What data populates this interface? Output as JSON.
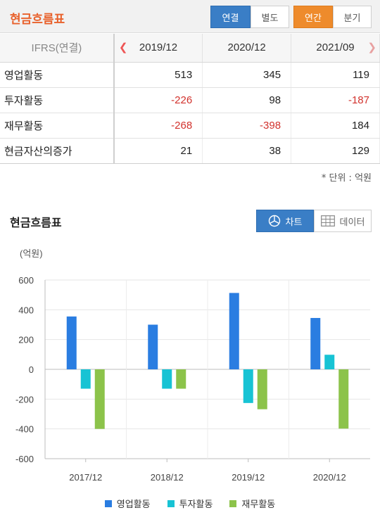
{
  "header": {
    "title": "현금흐름표",
    "scope_buttons": [
      "연결",
      "별도"
    ],
    "period_buttons": [
      "연간",
      "분기"
    ]
  },
  "table": {
    "header_label": "IFRS(연결)",
    "columns": [
      "2019/12",
      "2020/12",
      "2021/09"
    ],
    "rows": [
      {
        "label": "영업활동",
        "values": [
          "513",
          "345",
          "119"
        ]
      },
      {
        "label": "투자활동",
        "values": [
          "-226",
          "98",
          "-187"
        ]
      },
      {
        "label": "재무활동",
        "values": [
          "-268",
          "-398",
          "184"
        ]
      },
      {
        "label": "현금자산의증가",
        "values": [
          "21",
          "38",
          "129"
        ]
      }
    ],
    "unit_note": "* 단위 : 억원"
  },
  "chart_section": {
    "title": "현금흐름표",
    "chart_button": "차트",
    "data_button": "데이터"
  },
  "colors": {
    "brand_orange": "#e8612c",
    "selected_blue": "#3a7ec6",
    "selected_orange": "#ee8b2c",
    "negative_red": "#d2322d"
  },
  "chart_data": {
    "type": "bar",
    "unit_label": "(억원)",
    "categories": [
      "2017/12",
      "2018/12",
      "2019/12",
      "2020/12"
    ],
    "series": [
      {
        "name": "영업활동",
        "color": "#2a7de1",
        "values": [
          355,
          300,
          513,
          345
        ]
      },
      {
        "name": "투자활동",
        "color": "#17c3d4",
        "values": [
          -130,
          -130,
          -226,
          98
        ]
      },
      {
        "name": "재무활동",
        "color": "#8cc34a",
        "values": [
          -400,
          -130,
          -268,
          -398
        ]
      }
    ],
    "ylim": [
      -600,
      600
    ],
    "yticks": [
      600,
      400,
      200,
      0,
      -200,
      -400,
      -600
    ],
    "grid": true,
    "legend": "bottom"
  }
}
